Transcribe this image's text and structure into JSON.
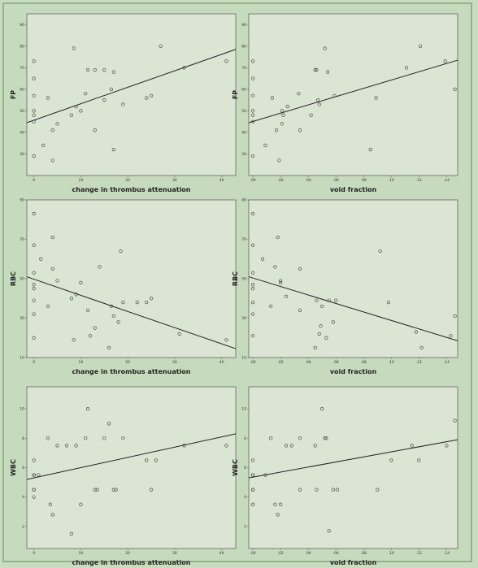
{
  "chart_data": [
    {
      "type": "scatter",
      "xlabel": "change in thrombus attenuation",
      "ylabel": "FP",
      "xticks": [
        "0",
        "10",
        "20",
        "30",
        "40"
      ],
      "yticks": [
        "30",
        "40",
        "50",
        "60",
        "70",
        "80",
        "90"
      ],
      "xlim": [
        -1.5,
        43
      ],
      "ylim": [
        20,
        95
      ],
      "points": [
        [
          0,
          73
        ],
        [
          0,
          65
        ],
        [
          0,
          57
        ],
        [
          0,
          50
        ],
        [
          0,
          48
        ],
        [
          0,
          45
        ],
        [
          0,
          29
        ],
        [
          2,
          34
        ],
        [
          3,
          56
        ],
        [
          4,
          41
        ],
        [
          4,
          27
        ],
        [
          5,
          44
        ],
        [
          8,
          48
        ],
        [
          8.5,
          79
        ],
        [
          9,
          52
        ],
        [
          10,
          50
        ],
        [
          11,
          58
        ],
        [
          11.5,
          69
        ],
        [
          13,
          69
        ],
        [
          13,
          41
        ],
        [
          15,
          69
        ],
        [
          15,
          55
        ],
        [
          16.5,
          60
        ],
        [
          17,
          68
        ],
        [
          17,
          32
        ],
        [
          19,
          53
        ],
        [
          24,
          56
        ],
        [
          25,
          57
        ],
        [
          27,
          80
        ],
        [
          32,
          70
        ],
        [
          41,
          73
        ]
      ],
      "fit": [
        [
          -1.5,
          44.5
        ],
        [
          43,
          78.5
        ]
      ]
    },
    {
      "type": "scatter",
      "xlabel": "void fraction",
      "ylabel": "FP",
      "xticks": [
        ".00",
        ".02",
        ".04",
        ".06",
        ".08",
        ".10",
        ".12",
        ".14"
      ],
      "yticks": [
        "30",
        "40",
        "50",
        "60",
        "70",
        "80",
        "90"
      ],
      "xlim": [
        -0.003,
        0.148
      ],
      "ylim": [
        20,
        95
      ],
      "points": [
        [
          0,
          73
        ],
        [
          0,
          65
        ],
        [
          0,
          57
        ],
        [
          0,
          50
        ],
        [
          0,
          48
        ],
        [
          0,
          45
        ],
        [
          0,
          29
        ],
        [
          0.009,
          34
        ],
        [
          0.014,
          56
        ],
        [
          0.017,
          41
        ],
        [
          0.019,
          27
        ],
        [
          0.021,
          44
        ],
        [
          0.022,
          48
        ],
        [
          0.021,
          50
        ],
        [
          0.025,
          52
        ],
        [
          0.033,
          58
        ],
        [
          0.034,
          41
        ],
        [
          0.042,
          48
        ],
        [
          0.045,
          69
        ],
        [
          0.046,
          69
        ],
        [
          0.047,
          55
        ],
        [
          0.048,
          53
        ],
        [
          0.052,
          79
        ],
        [
          0.054,
          68
        ],
        [
          0.059,
          57
        ],
        [
          0.085,
          32
        ],
        [
          0.089,
          56
        ],
        [
          0.111,
          70
        ],
        [
          0.121,
          80
        ],
        [
          0.139,
          73
        ],
        [
          0.146,
          60
        ]
      ],
      "fit": [
        [
          -0.003,
          44.5
        ],
        [
          0.148,
          73.5
        ]
      ]
    },
    {
      "type": "scatter",
      "xlabel": "change in thrombus attenuation",
      "ylabel": "RBC",
      "xticks": [
        "0",
        "10",
        "20",
        "30",
        "40"
      ],
      "yticks": [
        "10",
        "30",
        "50",
        "70",
        "90"
      ],
      "xlim": [
        -1.5,
        43
      ],
      "ylim": [
        10,
        90
      ],
      "points": [
        [
          0,
          83
        ],
        [
          0,
          67
        ],
        [
          0,
          53
        ],
        [
          0,
          47
        ],
        [
          0,
          45
        ],
        [
          0,
          39
        ],
        [
          0,
          32
        ],
        [
          0,
          20
        ],
        [
          1.5,
          60
        ],
        [
          3,
          36
        ],
        [
          4,
          71
        ],
        [
          4,
          55
        ],
        [
          5,
          49
        ],
        [
          8,
          40
        ],
        [
          8.5,
          19
        ],
        [
          9,
          42
        ],
        [
          10,
          48
        ],
        [
          11.5,
          34
        ],
        [
          12,
          21
        ],
        [
          13,
          25
        ],
        [
          14,
          56
        ],
        [
          16,
          15
        ],
        [
          16.5,
          36
        ],
        [
          17,
          31
        ],
        [
          18,
          28
        ],
        [
          18.5,
          64
        ],
        [
          19,
          38
        ],
        [
          22,
          38
        ],
        [
          24,
          38
        ],
        [
          25,
          40
        ],
        [
          31,
          22
        ],
        [
          41,
          19
        ]
      ],
      "fit": [
        [
          -1.5,
          51
        ],
        [
          43,
          14.5
        ]
      ]
    },
    {
      "type": "scatter",
      "xlabel": "void fraction",
      "ylabel": "RBC",
      "xticks": [
        ".00",
        ".02",
        ".04",
        ".06",
        ".08",
        ".10",
        ".12",
        ".14"
      ],
      "yticks": [
        "10",
        "30",
        "50",
        "70",
        "90"
      ],
      "xlim": [
        -0.003,
        0.148
      ],
      "ylim": [
        10,
        90
      ],
      "points": [
        [
          0,
          83
        ],
        [
          0,
          67
        ],
        [
          0,
          53
        ],
        [
          0,
          47
        ],
        [
          0,
          45
        ],
        [
          0,
          38
        ],
        [
          0,
          32
        ],
        [
          0,
          21
        ],
        [
          0.007,
          60
        ],
        [
          0.013,
          36
        ],
        [
          0.016,
          56
        ],
        [
          0.018,
          71
        ],
        [
          0.02,
          49
        ],
        [
          0.02,
          48
        ],
        [
          0.024,
          41
        ],
        [
          0.034,
          55
        ],
        [
          0.034,
          34
        ],
        [
          0.045,
          15
        ],
        [
          0.046,
          39
        ],
        [
          0.048,
          22
        ],
        [
          0.049,
          26
        ],
        [
          0.05,
          36
        ],
        [
          0.053,
          20
        ],
        [
          0.055,
          39
        ],
        [
          0.058,
          28
        ],
        [
          0.06,
          39
        ],
        [
          0.092,
          64
        ],
        [
          0.098,
          38
        ],
        [
          0.118,
          23
        ],
        [
          0.122,
          15
        ],
        [
          0.143,
          21
        ],
        [
          0.146,
          31
        ]
      ],
      "fit": [
        [
          -0.003,
          51
        ],
        [
          0.148,
          18.5
        ]
      ]
    },
    {
      "type": "scatter",
      "xlabel": "change in thrombus attenuation",
      "ylabel": "WBC",
      "xticks": [
        "0",
        "10",
        "20",
        "30",
        "40"
      ],
      "yticks": [
        "2",
        "4",
        "6",
        "8",
        "10"
      ],
      "xlim": [
        -1.5,
        43
      ],
      "ylim": [
        0.5,
        11.5
      ],
      "points": [
        [
          0,
          6.5
        ],
        [
          0,
          5.5
        ],
        [
          0,
          5.5
        ],
        [
          0,
          4.5
        ],
        [
          0,
          4.5
        ],
        [
          0,
          4
        ],
        [
          0,
          5.5
        ],
        [
          1,
          5.5
        ],
        [
          3,
          8
        ],
        [
          3.5,
          3.5
        ],
        [
          4,
          2.8
        ],
        [
          5,
          7.5
        ],
        [
          7,
          7.5
        ],
        [
          8,
          1.5
        ],
        [
          9,
          7.5
        ],
        [
          10,
          3.5
        ],
        [
          11,
          8
        ],
        [
          11.5,
          10
        ],
        [
          13,
          4.5
        ],
        [
          13.5,
          4.5
        ],
        [
          15,
          8
        ],
        [
          16,
          9
        ],
        [
          17,
          4.5
        ],
        [
          17.5,
          4.5
        ],
        [
          19,
          8
        ],
        [
          24,
          6.5
        ],
        [
          25,
          4.5
        ],
        [
          26,
          6.5
        ],
        [
          32,
          7.5
        ],
        [
          41,
          7.5
        ]
      ],
      "fit": [
        [
          -1.5,
          5.2
        ],
        [
          43,
          8.3
        ]
      ]
    },
    {
      "type": "scatter",
      "xlabel": "void fraction",
      "ylabel": "WBC",
      "xticks": [
        ".00",
        ".02",
        ".04",
        ".06",
        ".08",
        ".10",
        ".12",
        ".14"
      ],
      "yticks": [
        "2",
        "4",
        "6",
        "8",
        "10"
      ],
      "xlim": [
        -0.003,
        0.148
      ],
      "ylim": [
        0.5,
        11.5
      ],
      "points": [
        [
          0,
          6.5
        ],
        [
          0,
          5.5
        ],
        [
          0,
          5.5
        ],
        [
          0,
          4.5
        ],
        [
          0,
          4.5
        ],
        [
          0,
          3.5
        ],
        [
          0.009,
          5.5
        ],
        [
          0.013,
          8
        ],
        [
          0.016,
          3.5
        ],
        [
          0.018,
          2.8
        ],
        [
          0.02,
          3.5
        ],
        [
          0.024,
          7.5
        ],
        [
          0.028,
          7.5
        ],
        [
          0.034,
          4.5
        ],
        [
          0.034,
          8
        ],
        [
          0.045,
          7.5
        ],
        [
          0.046,
          4.5
        ],
        [
          0.05,
          10
        ],
        [
          0.052,
          8
        ],
        [
          0.053,
          8
        ],
        [
          0.055,
          1.7
        ],
        [
          0.058,
          4.5
        ],
        [
          0.061,
          4.5
        ],
        [
          0.09,
          4.5
        ],
        [
          0.1,
          6.5
        ],
        [
          0.115,
          7.5
        ],
        [
          0.12,
          6.5
        ],
        [
          0.14,
          7.5
        ],
        [
          0.146,
          9.2
        ]
      ],
      "fit": [
        [
          -0.003,
          5.3
        ],
        [
          0.148,
          7.9
        ]
      ]
    }
  ]
}
